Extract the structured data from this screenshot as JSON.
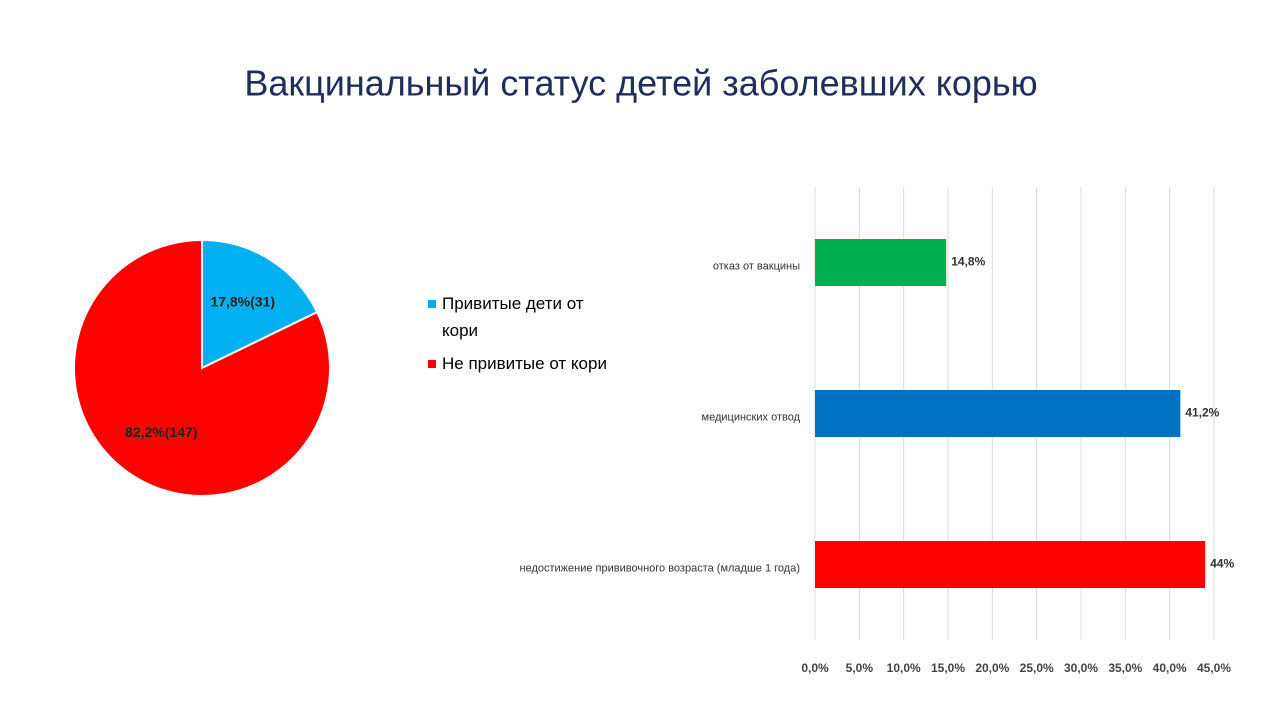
{
  "title": "Вакцинальный статус детей заболевших корью",
  "chart_data": [
    {
      "type": "pie",
      "categories": [
        "Привитые дети от кори",
        "Не привитые от кори"
      ],
      "values": [
        17.8,
        82.2
      ],
      "value_labels": [
        "17,8%(31)",
        "82,2%(147)"
      ],
      "colors": [
        "#00b0f0",
        "#ff0000"
      ]
    },
    {
      "type": "hbar",
      "categories": [
        "отказ от вакцины",
        "медицинских отвод",
        "недостижение прививочного возраста (младше 1 года)"
      ],
      "values": [
        14.8,
        41.2,
        44
      ],
      "value_labels": [
        "14,8%",
        "41,2%",
        "44%"
      ],
      "colors": [
        "#00b050",
        "#0070c0",
        "#ff0000"
      ],
      "xlim": [
        0,
        45
      ],
      "xticks": [
        {
          "value": 0,
          "label": "0,0%"
        },
        {
          "value": 5,
          "label": "5,0%"
        },
        {
          "value": 10,
          "label": "10,0%"
        },
        {
          "value": 15,
          "label": "15,0%"
        },
        {
          "value": 20,
          "label": "20,0%"
        },
        {
          "value": 25,
          "label": "25,0%"
        },
        {
          "value": 30,
          "label": "30,0%"
        },
        {
          "value": 35,
          "label": "35,0%"
        },
        {
          "value": 40,
          "label": "40,0%"
        },
        {
          "value": 45,
          "label": "45,0%"
        }
      ],
      "grid": true
    }
  ]
}
